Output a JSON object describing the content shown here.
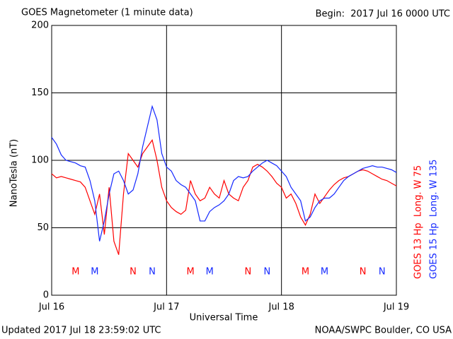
{
  "chart_data": {
    "type": "line",
    "title": "GOES Magnetometer (1 minute data)",
    "subtitle": "Begin:  2017 Jul 16 0000 UTC",
    "ylabel": "NanoTesla (nT)",
    "xlabel": "Universal Time",
    "footer_left": "Updated 2017 Jul 18 23:59:02 UTC",
    "footer_right": "NOAA/SWPC Boulder, CO USA",
    "xlim": [
      0,
      72
    ],
    "xticks": [
      {
        "value": 0,
        "label": "Jul 16"
      },
      {
        "value": 24,
        "label": "Jul 17"
      },
      {
        "value": 48,
        "label": "Jul 18"
      },
      {
        "value": 72,
        "label": "Jul 19"
      }
    ],
    "ylim": [
      0,
      200
    ],
    "yticks": [
      0,
      50,
      100,
      150,
      200
    ],
    "grid": true,
    "x": [
      0,
      1,
      2,
      3,
      4,
      5,
      6,
      7,
      8,
      9,
      10,
      11,
      12,
      13,
      14,
      15,
      16,
      17,
      18,
      19,
      20,
      21,
      22,
      23,
      24,
      25,
      26,
      27,
      28,
      29,
      30,
      31,
      32,
      33,
      34,
      35,
      36,
      37,
      38,
      39,
      40,
      41,
      42,
      43,
      44,
      45,
      46,
      47,
      48,
      49,
      50,
      51,
      52,
      53,
      54,
      55,
      56,
      57,
      58,
      59,
      60,
      61,
      62,
      63,
      64,
      65,
      66,
      67,
      68,
      69,
      70,
      71,
      72
    ],
    "series": [
      {
        "name": "GOES 13 Hp  Long. W 75",
        "color": "#ff0000",
        "values": [
          90,
          87,
          88,
          87,
          86,
          85,
          84,
          80,
          70,
          60,
          75,
          45,
          80,
          40,
          30,
          75,
          105,
          100,
          95,
          105,
          110,
          115,
          100,
          80,
          70,
          65,
          62,
          60,
          63,
          85,
          75,
          70,
          72,
          80,
          75,
          72,
          85,
          75,
          72,
          70,
          80,
          85,
          95,
          97,
          95,
          92,
          88,
          83,
          80,
          72,
          75,
          68,
          58,
          52,
          60,
          75,
          68,
          73,
          78,
          82,
          85,
          87,
          88,
          90,
          92,
          93,
          92,
          90,
          88,
          86,
          85,
          83,
          81
        ]
      },
      {
        "name": "GOES 15 Hp  Long. W 135",
        "color": "#1428ff",
        "values": [
          117,
          112,
          104,
          100,
          99,
          98,
          96,
          95,
          85,
          70,
          40,
          55,
          75,
          90,
          92,
          85,
          75,
          78,
          90,
          110,
          125,
          140,
          130,
          105,
          95,
          92,
          85,
          82,
          80,
          75,
          70,
          55,
          55,
          62,
          65,
          67,
          70,
          75,
          85,
          88,
          87,
          88,
          92,
          95,
          98,
          100,
          98,
          96,
          92,
          88,
          80,
          75,
          70,
          55,
          58,
          65,
          70,
          72,
          72,
          75,
          80,
          85,
          88,
          90,
          92,
          94,
          95,
          96,
          95,
          95,
          94,
          93,
          91
        ]
      }
    ],
    "annotations": [
      {
        "text": "M",
        "x": 5,
        "color": "#ff0000"
      },
      {
        "text": "M",
        "x": 9,
        "color": "#1428ff"
      },
      {
        "text": "N",
        "x": 17,
        "color": "#ff0000"
      },
      {
        "text": "N",
        "x": 21,
        "color": "#1428ff"
      },
      {
        "text": "M",
        "x": 29,
        "color": "#ff0000"
      },
      {
        "text": "M",
        "x": 33,
        "color": "#1428ff"
      },
      {
        "text": "N",
        "x": 41,
        "color": "#ff0000"
      },
      {
        "text": "N",
        "x": 45,
        "color": "#1428ff"
      },
      {
        "text": "M",
        "x": 53,
        "color": "#ff0000"
      },
      {
        "text": "M",
        "x": 57,
        "color": "#1428ff"
      },
      {
        "text": "N",
        "x": 65,
        "color": "#ff0000"
      },
      {
        "text": "N",
        "x": 69,
        "color": "#1428ff"
      }
    ]
  }
}
